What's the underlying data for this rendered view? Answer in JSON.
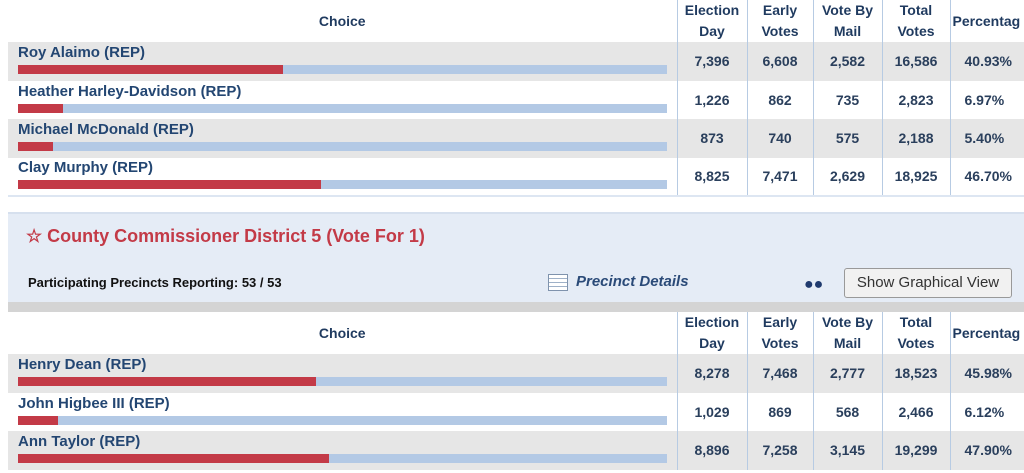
{
  "headers": {
    "choice": "Choice",
    "election_day": [
      "Election",
      "Day"
    ],
    "early": [
      "Early",
      "Votes"
    ],
    "mail": [
      "Vote By",
      "Mail"
    ],
    "total": [
      "Total",
      "Votes"
    ],
    "pct": "Percentag"
  },
  "race1": {
    "rows": [
      {
        "name": "Roy Alaimo (REP)",
        "election_day": "7,396",
        "early": "6,608",
        "mail": "2,582",
        "total": "16,586",
        "pct": "40.93%",
        "share": 40.93
      },
      {
        "name": "Heather Harley-Davidson (REP)",
        "election_day": "1,226",
        "early": "862",
        "mail": "735",
        "total": "2,823",
        "pct": "6.97%",
        "share": 6.97
      },
      {
        "name": "Michael McDonald (REP)",
        "election_day": "873",
        "early": "740",
        "mail": "575",
        "total": "2,188",
        "pct": "5.40%",
        "share": 5.4
      },
      {
        "name": "Clay Murphy (REP)",
        "election_day": "8,825",
        "early": "7,471",
        "mail": "2,629",
        "total": "18,925",
        "pct": "46.70%",
        "share": 46.7
      }
    ]
  },
  "race2": {
    "star": "☆",
    "title": "County Commissioner District 5 (Vote For 1)",
    "precincts": "Participating Precincts Reporting: 53 / 53",
    "precinct_details": "Precinct Details",
    "graph_button": "Show Graphical View",
    "rows": [
      {
        "name": "Henry Dean (REP)",
        "election_day": "8,278",
        "early": "7,468",
        "mail": "2,777",
        "total": "18,523",
        "pct": "45.98%",
        "share": 45.98
      },
      {
        "name": "John Higbee III (REP)",
        "election_day": "1,029",
        "early": "869",
        "mail": "568",
        "total": "2,466",
        "pct": "6.12%",
        "share": 6.12
      },
      {
        "name": "Ann Taylor (REP)",
        "election_day": "8,896",
        "early": "7,258",
        "mail": "3,145",
        "total": "19,299",
        "pct": "47.90%",
        "share": 47.9
      }
    ]
  },
  "colors": {
    "bar_fill": "#c33a47",
    "bar_track": "#b3c9e5",
    "title": "#c33a47"
  }
}
